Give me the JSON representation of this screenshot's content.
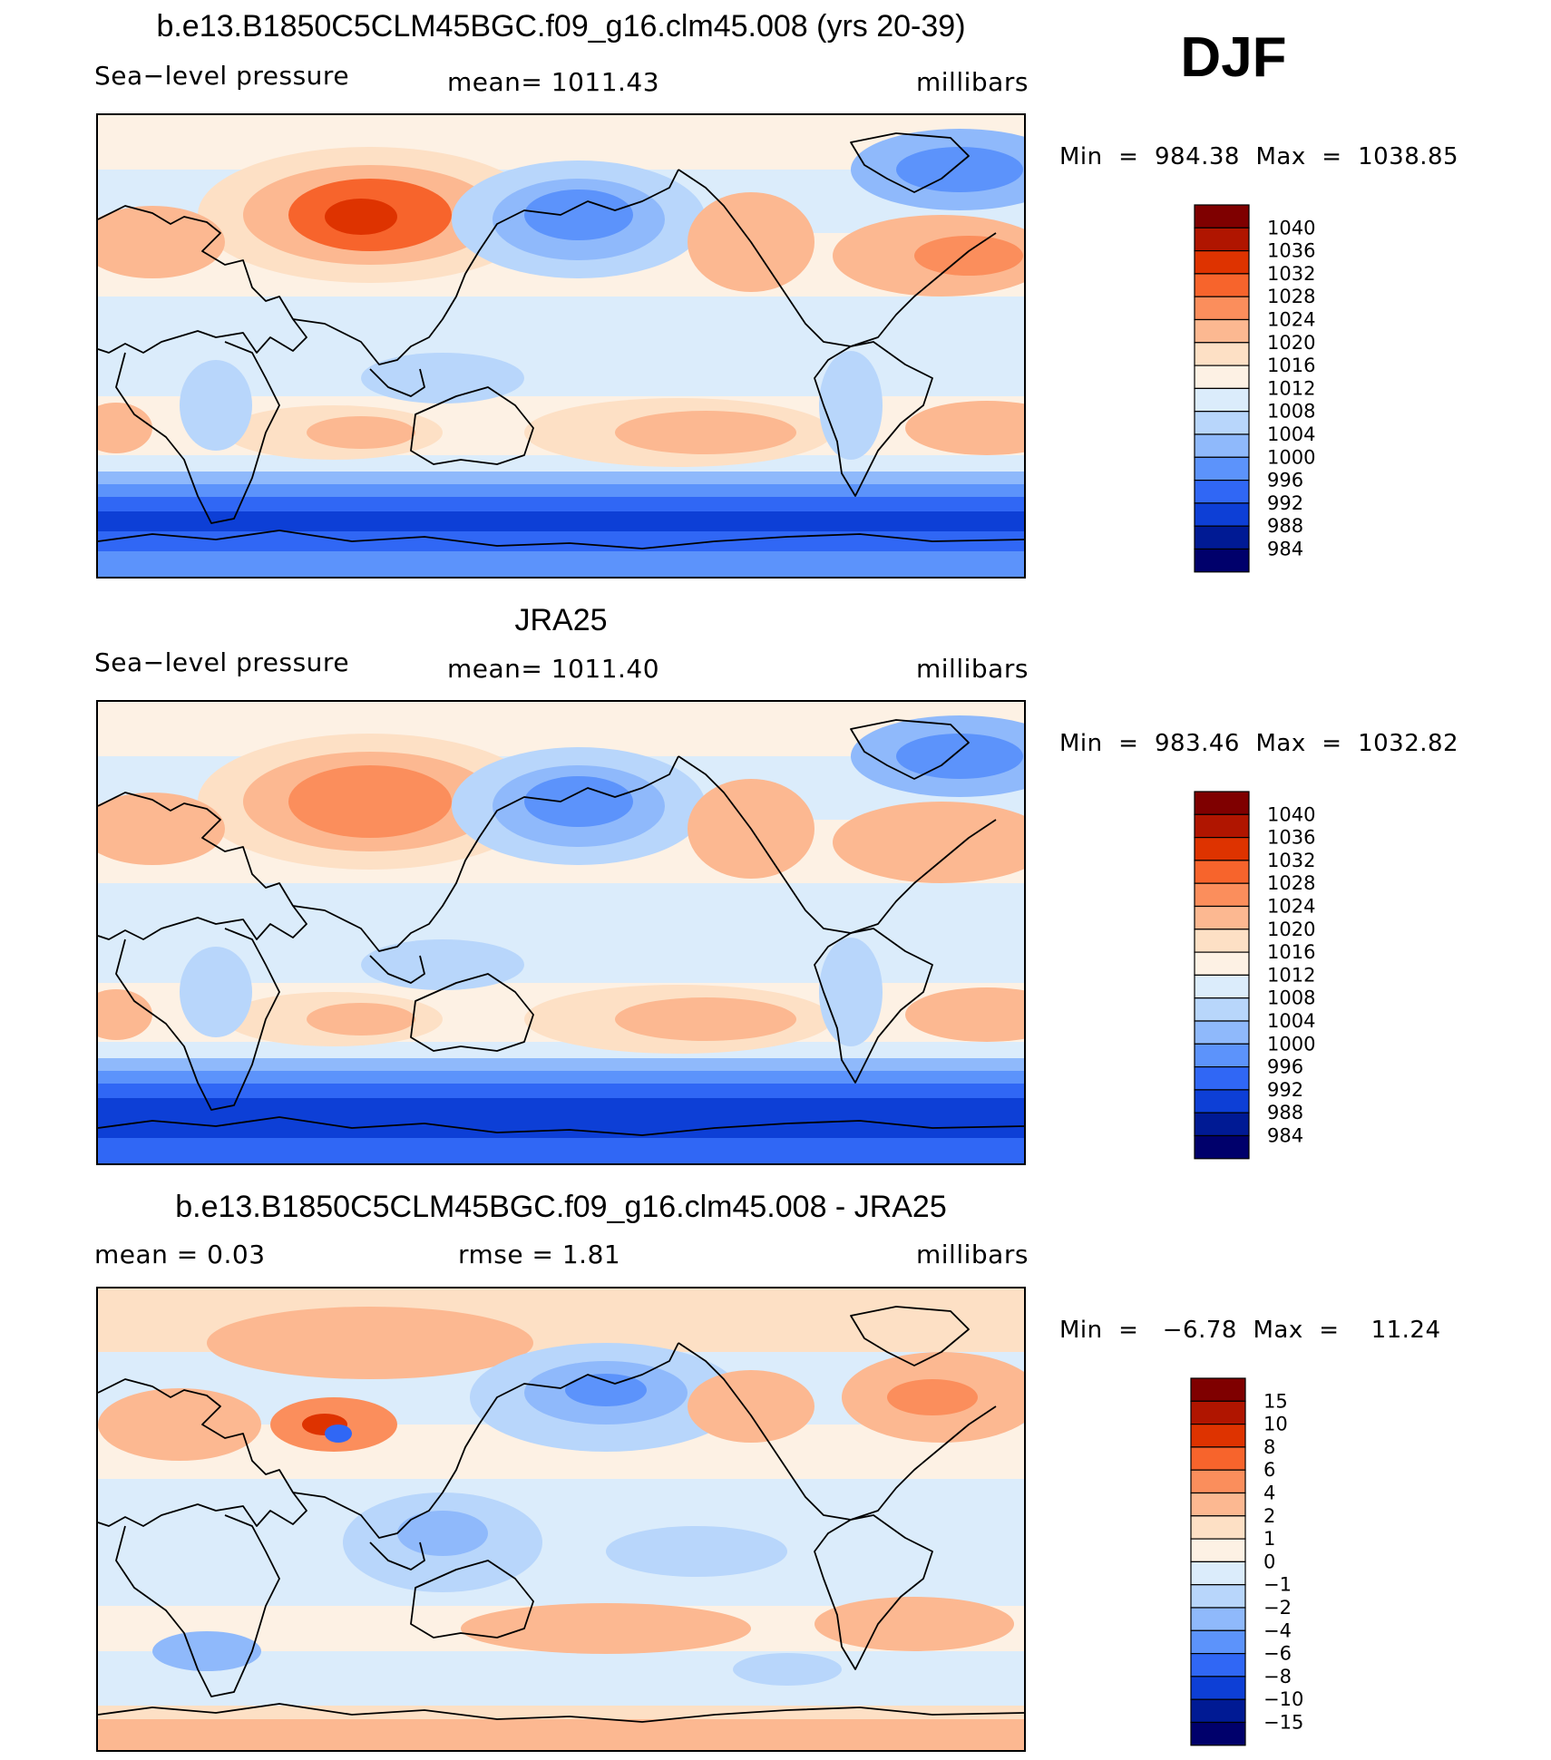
{
  "season": "DJF",
  "panels": [
    {
      "title": "b.e13.B1850C5CLM45BGC.f09_g16.clm45.008 (yrs 20-39)",
      "left_label": "Sea−level pressure",
      "center_label": "mean=  1011.43",
      "units": "millibars",
      "minmax": "Min  =  984.38  Max  =  1038.85",
      "colorbar_labels": [
        "1040",
        "1036",
        "1032",
        "1028",
        "1024",
        "1020",
        "1016",
        "1012",
        "1008",
        "1004",
        "1000",
        "996",
        "992",
        "988",
        "984"
      ]
    },
    {
      "title": "JRA25",
      "left_label": "Sea−level pressure",
      "center_label": "mean=  1011.40",
      "units": "millibars",
      "minmax": "Min  =  983.46  Max  =  1032.82",
      "colorbar_labels": [
        "1040",
        "1036",
        "1032",
        "1028",
        "1024",
        "1020",
        "1016",
        "1012",
        "1008",
        "1004",
        "1000",
        "996",
        "992",
        "988",
        "984"
      ]
    },
    {
      "title": "b.e13.B1850C5CLM45BGC.f09_g16.clm45.008 - JRA25",
      "left_label": "mean  =     0.03",
      "center_label": "rmse  =     1.81",
      "units": "millibars",
      "minmax": "Min  =   −6.78  Max  =    11.24",
      "colorbar_labels": [
        "15",
        "10",
        "8",
        "6",
        "4",
        "2",
        "1",
        "0",
        "−1",
        "−2",
        "−4",
        "−6",
        "−8",
        "−10",
        "−15"
      ]
    }
  ],
  "colors": {
    "abs_scale": [
      "#7f0000",
      "#b01500",
      "#de3300",
      "#f7642c",
      "#fb8e5c",
      "#fcb891",
      "#fde0c5",
      "#fdf1e4",
      "#dbecfb",
      "#b8d6fb",
      "#8fb9fb",
      "#5c93fb",
      "#3067f5",
      "#0d3fd6",
      "#001a94",
      "#00006b"
    ],
    "diff_scale": [
      "#7f0000",
      "#b01500",
      "#de3300",
      "#f7642c",
      "#fb8e5c",
      "#fcb891",
      "#fde0c5",
      "#fdf1e4",
      "#dbecfb",
      "#b8d6fb",
      "#8fb9fb",
      "#5c93fb",
      "#3067f5",
      "#0d3fd6",
      "#001a94",
      "#00006b"
    ]
  }
}
